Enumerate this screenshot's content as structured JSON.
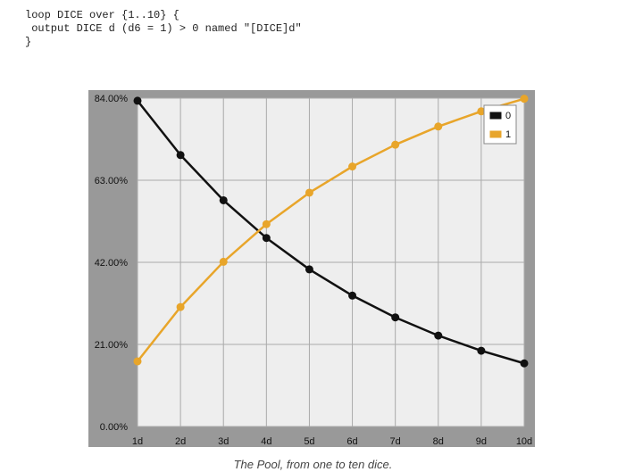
{
  "code": {
    "lines": [
      "loop DICE over {1..10} {",
      " output DICE d (d6 = 1) > 0 named \"[DICE]d\"",
      "}"
    ]
  },
  "caption": "The Pool, from one to ten dice.",
  "colors": {
    "frame": "#999999",
    "plot_bg": "#eeeeee",
    "grid": "#aaaaaa",
    "series_0": "#111111",
    "series_1": "#e8a52a"
  },
  "chart_data": {
    "type": "line",
    "x": [
      "1d",
      "2d",
      "3d",
      "4d",
      "5d",
      "6d",
      "7d",
      "8d",
      "9d",
      "10d"
    ],
    "ylim": [
      0,
      84
    ],
    "yticks": [
      "0.00%",
      "21.00%",
      "42.00%",
      "63.00%",
      "84.00%"
    ],
    "ytick_values": [
      0,
      21,
      42,
      63,
      84
    ],
    "grid": true,
    "legend_position": "top-right",
    "series": [
      {
        "name": "0",
        "values": [
          83.33,
          69.44,
          57.87,
          48.23,
          40.19,
          33.49,
          27.91,
          23.26,
          19.38,
          16.15
        ]
      },
      {
        "name": "1",
        "values": [
          16.67,
          30.56,
          42.13,
          51.77,
          59.81,
          66.51,
          72.09,
          76.74,
          80.62,
          83.85
        ]
      }
    ]
  }
}
